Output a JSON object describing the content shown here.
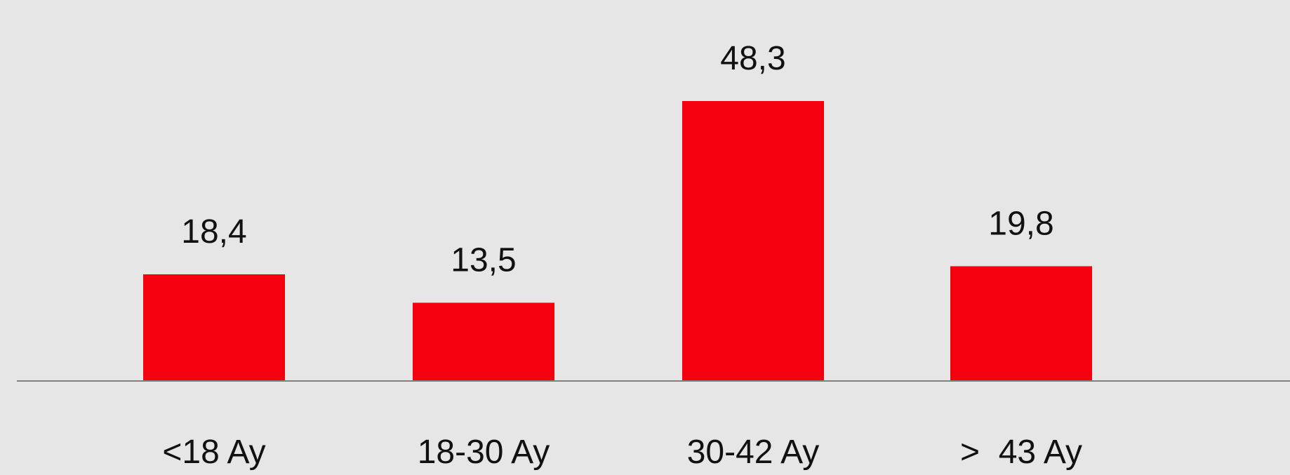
{
  "background_color": "#e6e6e6",
  "chart_data": {
    "type": "bar",
    "categories": [
      "<18 Ay",
      "18-30 Ay",
      "30-42 Ay",
      ">  43 Ay"
    ],
    "values": [
      18.4,
      13.5,
      48.3,
      19.8
    ],
    "value_labels": [
      "18,4",
      "13,5",
      "48,3",
      "19,8"
    ],
    "bar_color": "#f5000f",
    "axis_color": "#808080",
    "ylim": [
      0,
      48.3
    ],
    "grid": false,
    "legend": "none",
    "title": "",
    "xlabel": "",
    "ylabel": ""
  }
}
